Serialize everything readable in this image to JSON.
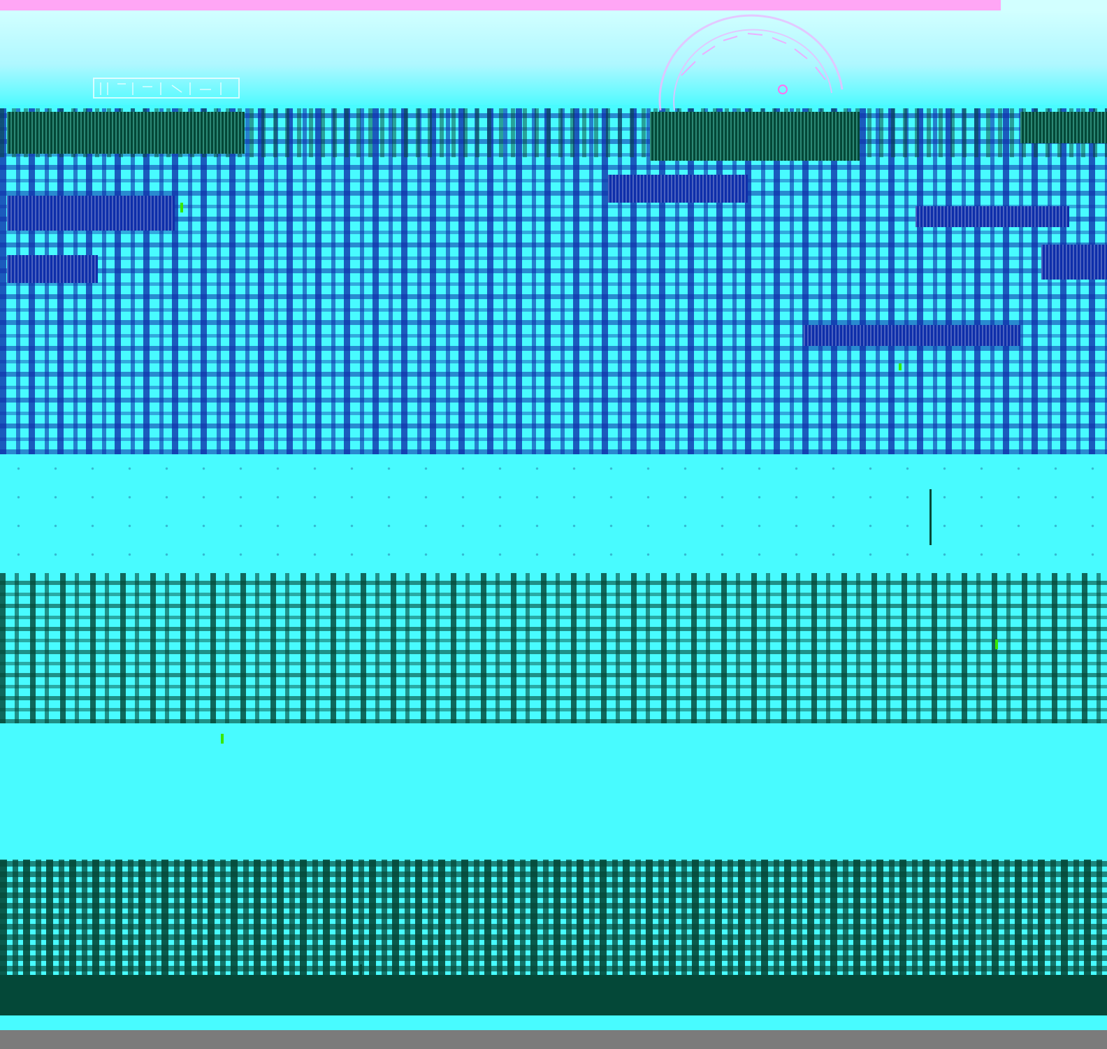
{
  "image": {
    "description_tag": "corrupted-color-noise-document",
    "colors": {
      "pink": "#ffa6f5",
      "pale": "#d2ffff",
      "cyan": "#48fbff",
      "blue": "#0e2eaa",
      "dark": "#044838",
      "green": "#38e800"
    },
    "icons": {
      "seal": "circular-seal-icon"
    }
  }
}
